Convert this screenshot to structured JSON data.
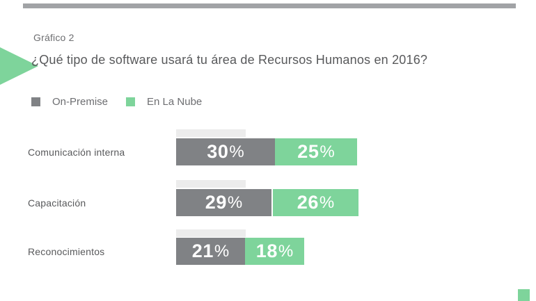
{
  "slide": {
    "kicker": "Gráfico 2",
    "title": "¿Qué tipo de software usará tu área de Recursos Humanos en 2016?"
  },
  "legend": {
    "items": [
      {
        "label": "On-Premise",
        "color": "#808285"
      },
      {
        "label": "En La Nube",
        "color": "#7ed49b"
      }
    ]
  },
  "chart_data": {
    "type": "bar",
    "orientation": "horizontal",
    "stacked": true,
    "title": "¿Qué tipo de software usará tu área de Recursos Humanos en 2016?",
    "categories": [
      "Comunicación interna",
      "Capacitación",
      "Reconocimientos"
    ],
    "series": [
      {
        "name": "On-Premise",
        "color": "#808285",
        "values": [
          30,
          29,
          21
        ]
      },
      {
        "name": "En La Nube",
        "color": "#7ed49b",
        "values": [
          25,
          26,
          18
        ]
      }
    ],
    "value_suffix": "%",
    "value_labels": "inside",
    "legend_position": "top-left",
    "grid": false,
    "xlim": [
      0,
      55
    ]
  },
  "colors": {
    "bar_gray": "#808285",
    "bar_green": "#7ed49b",
    "accent_green": "#7ed49b",
    "top_rule_gray": "#a1a3a6",
    "text_dark": "#58595b",
    "text_muted": "#6d6e71"
  }
}
